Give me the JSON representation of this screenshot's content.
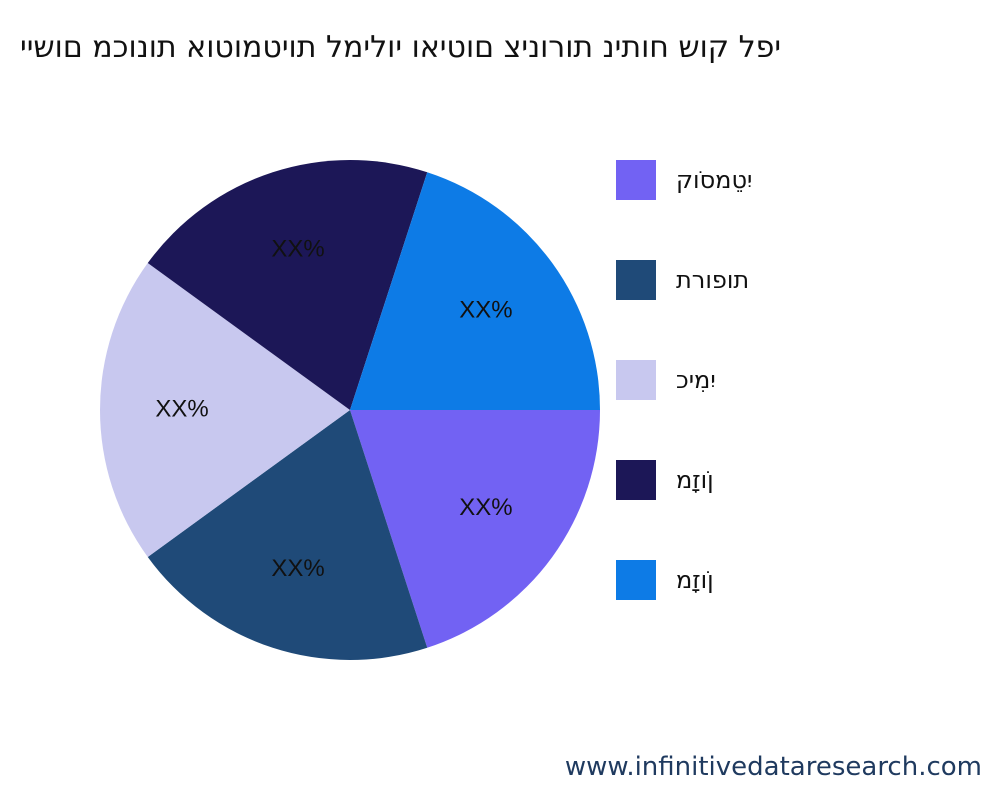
{
  "chart_data": {
    "type": "pie",
    "title": "יפל קוש חותינ תורוניצ םוטיאו יולימל תויטמוטוא תונוכמ םושיי",
    "slice_label_text": "XX%",
    "legend_placement": "right",
    "series": [
      {
        "name": "יִטֵמסֹוק",
        "value": 20,
        "color": "#7262f3"
      },
      {
        "name": "תופורת",
        "value": 20,
        "color": "#1f4a78"
      },
      {
        "name": "יִמִיכ",
        "value": 20,
        "color": "#c8c8ef"
      },
      {
        "name": "ןֹוזָמ",
        "value": 20,
        "color": "#1c1757"
      },
      {
        "name": "ןֹוזָמ",
        "value": 20,
        "color": "#0d7be6"
      }
    ]
  },
  "watermark": "www.infinitivedataresearch.com"
}
